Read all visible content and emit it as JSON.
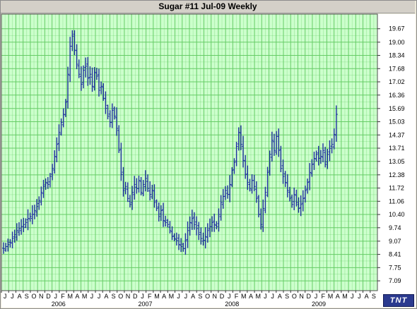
{
  "window": {
    "title": "Sugar #11 Jul-09  Weekly"
  },
  "logo_text": "TNT",
  "colors": {
    "plot_background": "#ccffcc",
    "grid": "#66cc66",
    "bars": "#1f2fa0",
    "axis_bg": "#ffffff"
  },
  "chart_data": {
    "type": "ohlc",
    "title": "Sugar #11 Jul-09  Weekly",
    "y_axis_side": "right",
    "ylim": [
      6.6,
      20.4
    ],
    "y_ticks": [
      "19.67",
      "19.00",
      "18.34",
      "17.68",
      "17.02",
      "16.36",
      "15.69",
      "15.03",
      "14.37",
      "13.71",
      "13.05",
      "12.38",
      "11.72",
      "11.06",
      "10.40",
      "9.74",
      "9.07",
      "8.41",
      "7.75",
      "7.09"
    ],
    "x_range": [
      "2005-06-01",
      "2009-10-01"
    ],
    "x_month_labels": [
      "J",
      "J",
      "A",
      "S",
      "O",
      "N",
      "D",
      "J",
      "F",
      "M",
      "A",
      "M",
      "J",
      "J",
      "A",
      "S",
      "O",
      "N",
      "D",
      "J",
      "F",
      "M",
      "A",
      "M",
      "J",
      "J",
      "A",
      "S",
      "O",
      "N",
      "D",
      "J",
      "F",
      "M",
      "A",
      "M",
      "J",
      "J",
      "A",
      "S",
      "O",
      "N",
      "D",
      "J",
      "F",
      "M",
      "A",
      "M",
      "J",
      "J",
      "A",
      "S"
    ],
    "x_year_labels": [
      {
        "label": "2006",
        "month": "2006-01"
      },
      {
        "label": "2007",
        "month": "2007-01"
      },
      {
        "label": "2008",
        "month": "2008-01"
      },
      {
        "label": "2009",
        "month": "2009-01"
      }
    ],
    "grid": true,
    "bar_color": "#1f2fa0",
    "series_weekly_close": [
      8.7,
      8.8,
      8.9,
      9.0,
      9.2,
      9.4,
      9.6,
      9.7,
      9.8,
      9.9,
      10.0,
      10.2,
      10.3,
      10.4,
      10.6,
      10.8,
      11.1,
      11.5,
      11.8,
      12.0,
      11.9,
      12.3,
      12.7,
      13.3,
      13.9,
      14.5,
      15.0,
      15.4,
      16.0,
      17.4,
      18.8,
      19.3,
      18.6,
      17.9,
      17.4,
      16.9,
      17.6,
      17.8,
      17.2,
      17.4,
      16.8,
      17.5,
      17.3,
      16.6,
      16.8,
      16.2,
      15.7,
      15.3,
      15.0,
      15.6,
      15.3,
      14.7,
      13.6,
      12.4,
      11.6,
      11.8,
      11.2,
      10.9,
      11.5,
      11.9,
      11.7,
      12.1,
      11.5,
      11.9,
      12.2,
      11.7,
      11.4,
      11.6,
      11.0,
      10.7,
      10.3,
      10.6,
      10.1,
      10.0,
      9.9,
      9.6,
      9.3,
      9.2,
      9.1,
      8.9,
      8.8,
      8.7,
      9.1,
      9.6,
      10.0,
      10.2,
      9.9,
      9.7,
      9.4,
      9.2,
      9.1,
      9.3,
      9.6,
      9.8,
      10.0,
      9.9,
      9.8,
      10.4,
      11.0,
      11.3,
      11.6,
      11.4,
      11.9,
      12.6,
      13.0,
      13.8,
      14.5,
      13.9,
      13.1,
      12.4,
      12.0,
      11.7,
      12.1,
      11.8,
      11.2,
      10.4,
      9.9,
      10.7,
      11.5,
      12.5,
      13.4,
      14.1,
      13.6,
      14.3,
      13.6,
      12.7,
      12.3,
      12.0,
      11.6,
      11.2,
      10.9,
      11.4,
      11.0,
      10.7,
      10.9,
      11.2,
      11.6,
      12.0,
      12.5,
      12.9,
      13.2,
      13.4,
      13.2,
      13.3,
      13.6,
      12.9,
      13.4,
      13.7,
      13.9,
      14.4,
      15.4
    ],
    "series_note": ""
  }
}
